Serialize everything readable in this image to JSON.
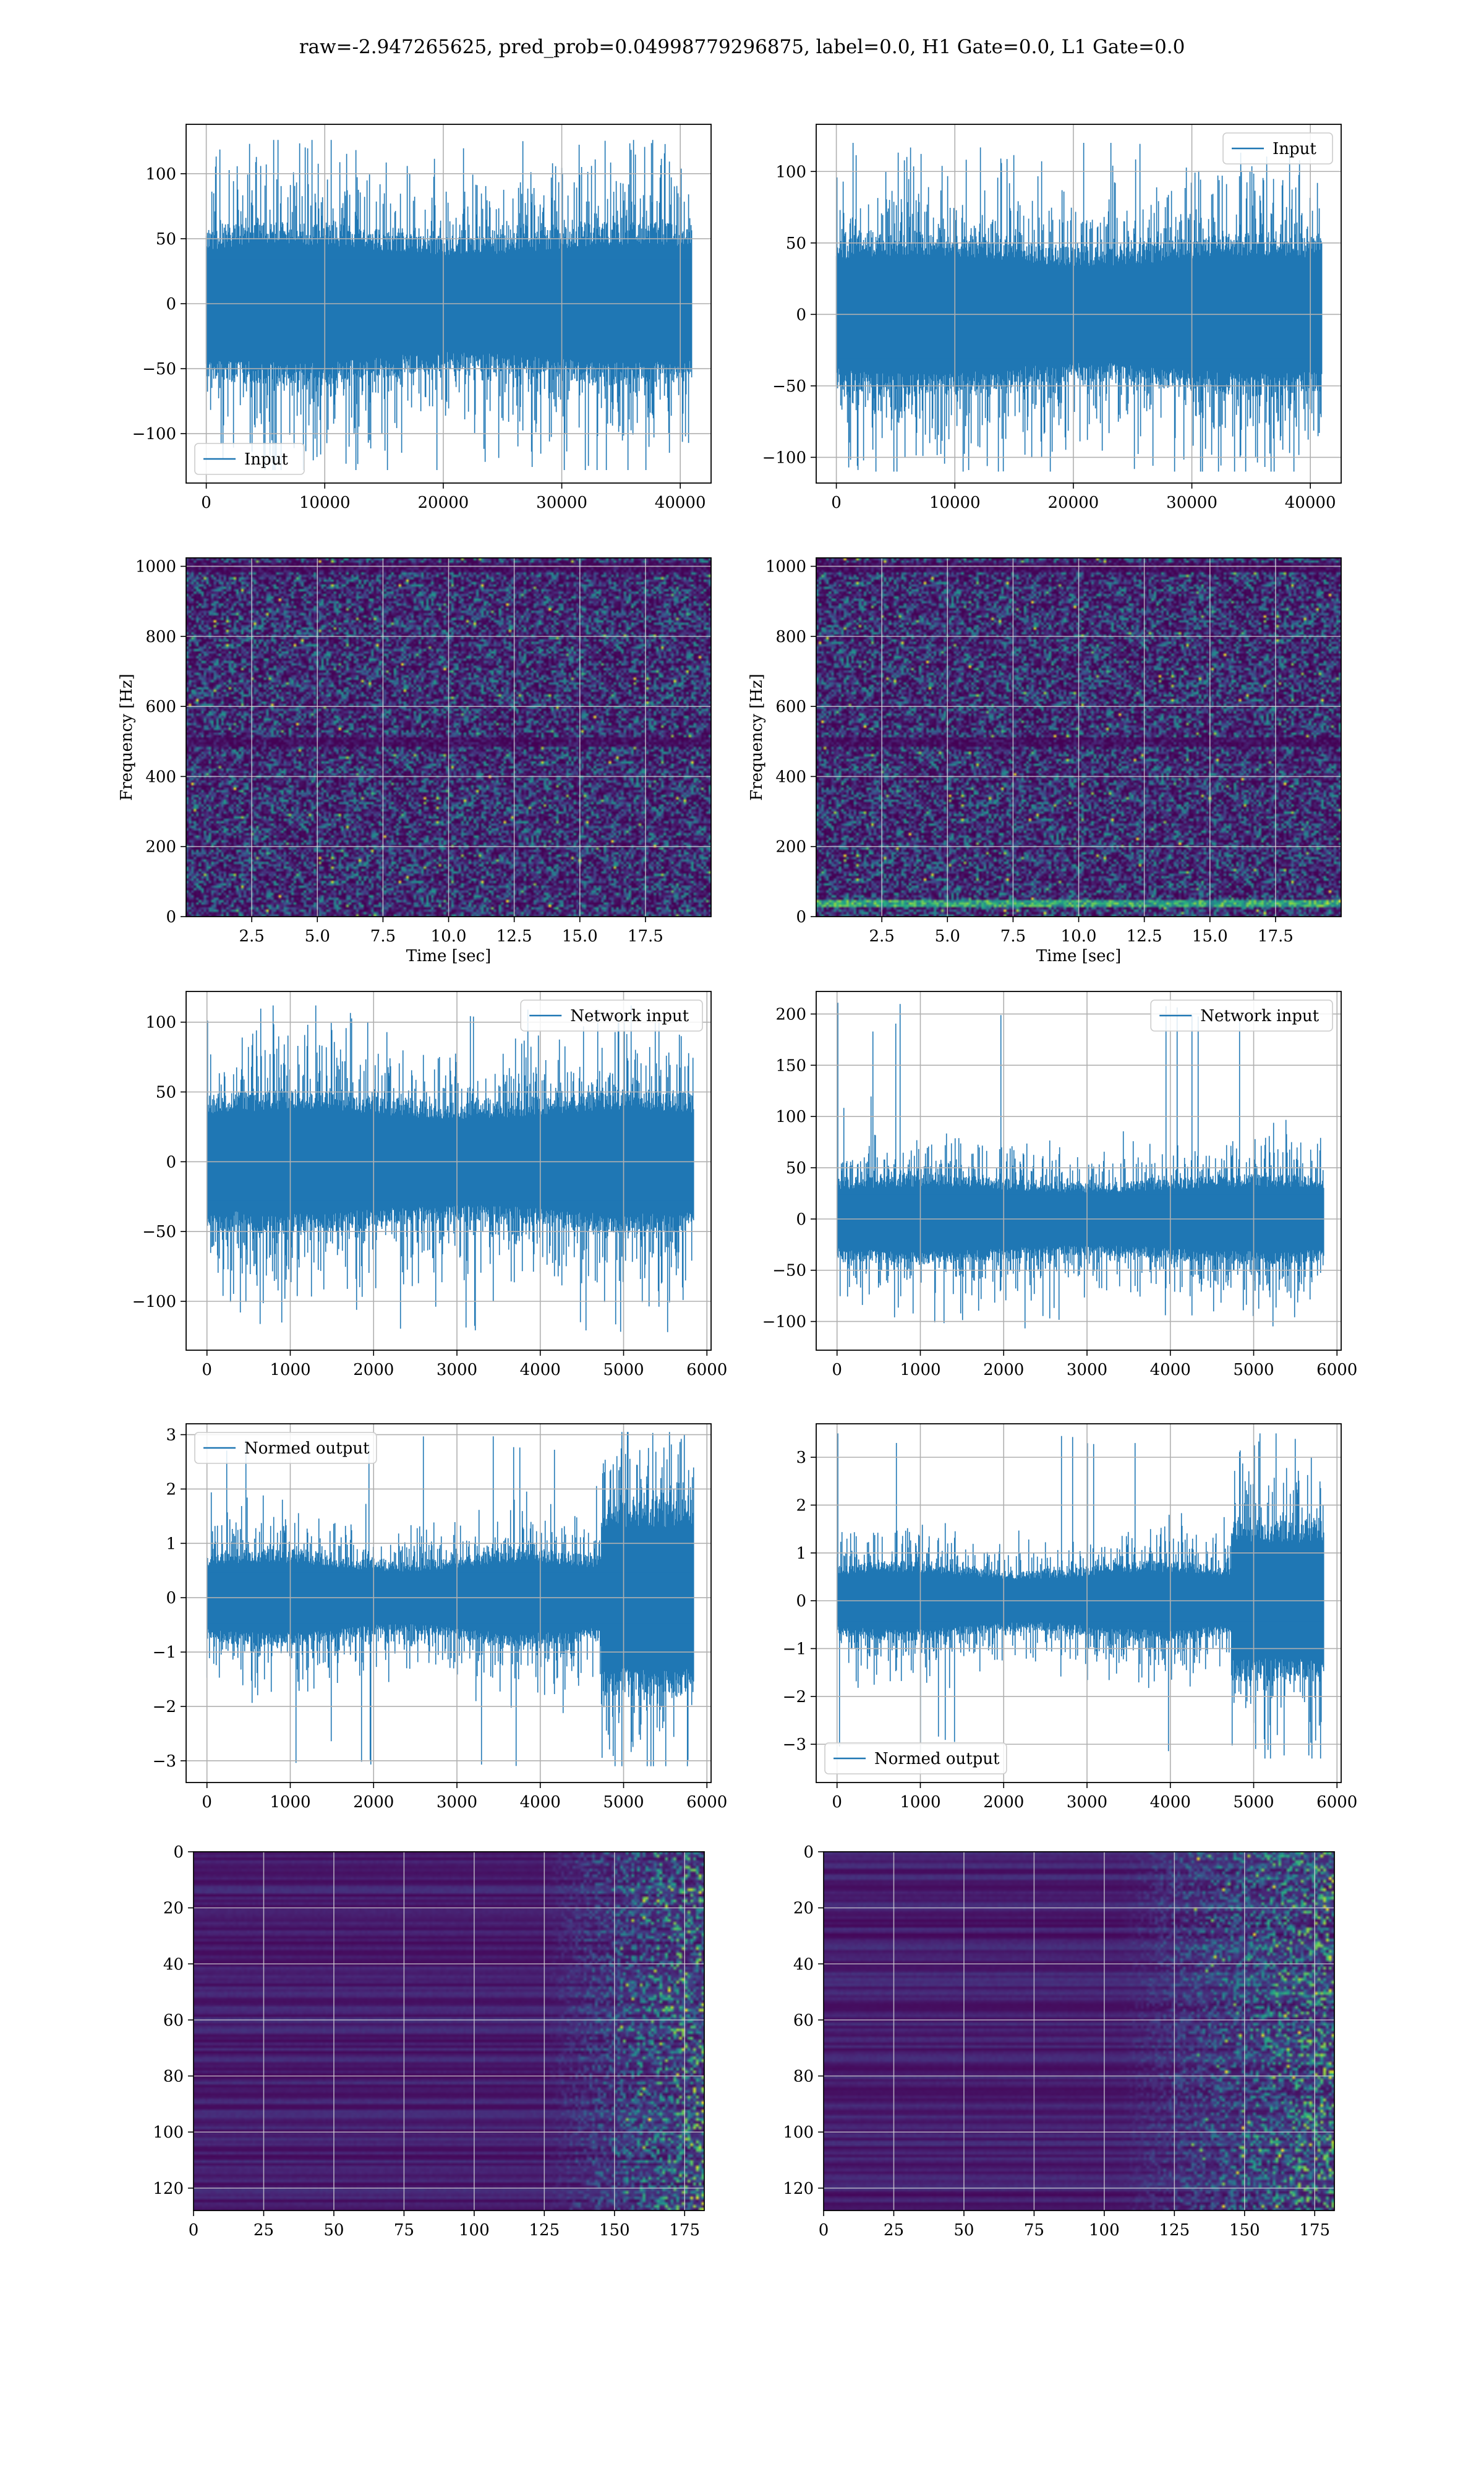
{
  "figure": {
    "title": "raw=-2.947265625, pred_prob=0.04998779296875, label=0.0, H1 Gate=0.0, L1 Gate=0.0"
  },
  "colors": {
    "series": "#1f77b4",
    "grid": "#b0b0b0",
    "viridis_low": "#440154",
    "viridis_high": "#fde725"
  },
  "chart_data": [
    {
      "id": "input-h1",
      "type": "line",
      "title": "",
      "xlabel": "",
      "ylabel": "",
      "xlim": [
        -1700,
        42600
      ],
      "ylim": [
        -138,
        138
      ],
      "xticks": [
        0,
        10000,
        20000,
        30000,
        40000
      ],
      "yticks": [
        -100,
        -50,
        0,
        50,
        100
      ],
      "grid": true,
      "legend_placement": "lower-left",
      "series": [
        {
          "name": "Input",
          "n": 40960,
          "x_range": [
            0,
            40960
          ],
          "band": [
            -55,
            55
          ],
          "peak_min": -128,
          "peak_max": 126,
          "profile": "flat"
        }
      ]
    },
    {
      "id": "input-l1",
      "type": "line",
      "title": "",
      "xlabel": "",
      "ylabel": "",
      "xlim": [
        -1700,
        42600
      ],
      "ylim": [
        -118,
        133
      ],
      "xticks": [
        0,
        10000,
        20000,
        30000,
        40000
      ],
      "yticks": [
        -100,
        -50,
        0,
        50,
        100
      ],
      "grid": true,
      "legend_placement": "upper-right",
      "series": [
        {
          "name": "Input",
          "n": 40960,
          "x_range": [
            0,
            40960
          ],
          "band": [
            -50,
            50
          ],
          "peak_min": -110,
          "peak_max": 120,
          "profile": "flat"
        }
      ]
    },
    {
      "id": "spectrogram-h1",
      "type": "heatmap",
      "title": "",
      "xlabel": "Time [sec]",
      "ylabel": "Frequency [Hz]",
      "xlim": [
        0,
        20
      ],
      "ylim": [
        0,
        1024
      ],
      "xticks": [
        2.5,
        5.0,
        7.5,
        10.0,
        12.5,
        15.0,
        17.5
      ],
      "xtick_labels": [
        "2.5",
        "5.0",
        "7.5",
        "10.0",
        "12.5",
        "15.0",
        "17.5"
      ],
      "yticks": [
        0,
        200,
        400,
        600,
        800,
        1000
      ],
      "grid": true,
      "colormap": "viridis",
      "dark_bands_hz": [
        500,
        1000
      ],
      "bright_rows_hz": []
    },
    {
      "id": "spectrogram-l1",
      "type": "heatmap",
      "title": "",
      "xlabel": "Time [sec]",
      "ylabel": "Frequency [Hz]",
      "xlim": [
        0,
        20
      ],
      "ylim": [
        0,
        1024
      ],
      "xticks": [
        2.5,
        5.0,
        7.5,
        10.0,
        12.5,
        15.0,
        17.5
      ],
      "xtick_labels": [
        "2.5",
        "5.0",
        "7.5",
        "10.0",
        "12.5",
        "15.0",
        "17.5"
      ],
      "yticks": [
        0,
        200,
        400,
        600,
        800,
        1000
      ],
      "grid": true,
      "colormap": "viridis",
      "dark_bands_hz": [
        500,
        1000
      ],
      "bright_rows_hz": [
        40
      ]
    },
    {
      "id": "network-input-h1",
      "type": "line",
      "title": "",
      "xlabel": "",
      "ylabel": "",
      "xlim": [
        -250,
        6050
      ],
      "ylim": [
        -135,
        122
      ],
      "xticks": [
        0,
        1000,
        2000,
        3000,
        4000,
        5000,
        6000
      ],
      "yticks": [
        -100,
        -50,
        0,
        50,
        100
      ],
      "grid": true,
      "legend_placement": "upper-right",
      "series": [
        {
          "name": "Network input",
          "n": 5840,
          "x_range": [
            0,
            5840
          ],
          "band": [
            -45,
            45
          ],
          "peak_min": -122,
          "peak_max": 112,
          "profile": "flat"
        }
      ]
    },
    {
      "id": "network-input-l1",
      "type": "line",
      "title": "",
      "xlabel": "",
      "ylabel": "",
      "xlim": [
        -250,
        6050
      ],
      "ylim": [
        -128,
        222
      ],
      "xticks": [
        0,
        1000,
        2000,
        3000,
        4000,
        5000,
        6000
      ],
      "yticks": [
        -100,
        -50,
        0,
        50,
        100,
        150,
        200
      ],
      "grid": true,
      "legend_placement": "upper-right",
      "series": [
        {
          "name": "Network input",
          "n": 5840,
          "x_range": [
            0,
            5840
          ],
          "band": [
            -38,
            38
          ],
          "peak_min": -110,
          "peak_max": 211,
          "profile": "spike-start"
        }
      ]
    },
    {
      "id": "normed-output-h1",
      "type": "line",
      "title": "",
      "xlabel": "",
      "ylabel": "",
      "xlim": [
        -250,
        6050
      ],
      "ylim": [
        -3.4,
        3.2
      ],
      "xticks": [
        0,
        1000,
        2000,
        3000,
        4000,
        5000,
        6000
      ],
      "yticks": [
        -3,
        -2,
        -1,
        0,
        1,
        2,
        3
      ],
      "grid": true,
      "legend_placement": "upper-left",
      "series": [
        {
          "name": "Normed output",
          "n": 5840,
          "x_range": [
            0,
            5840
          ],
          "band": [
            -0.75,
            0.75
          ],
          "peak_min": -3.1,
          "peak_max": 3.05,
          "profile": "tail-burst"
        }
      ]
    },
    {
      "id": "normed-output-l1",
      "type": "line",
      "title": "",
      "xlabel": "",
      "ylabel": "",
      "xlim": [
        -250,
        6050
      ],
      "ylim": [
        -3.8,
        3.7
      ],
      "xticks": [
        0,
        1000,
        2000,
        3000,
        4000,
        5000,
        6000
      ],
      "yticks": [
        -3,
        -2,
        -1,
        0,
        1,
        2,
        3
      ],
      "grid": true,
      "legend_placement": "lower-left",
      "series": [
        {
          "name": "Normed output",
          "n": 5840,
          "x_range": [
            0,
            5840
          ],
          "band": [
            -0.7,
            0.7
          ],
          "peak_min": -3.3,
          "peak_max": 3.5,
          "profile": "tail-burst-spike"
        }
      ]
    },
    {
      "id": "feature-map-h1",
      "type": "heatmap",
      "title": "",
      "xlabel": "",
      "ylabel": "",
      "xlim": [
        0,
        182
      ],
      "ylim": [
        128,
        0
      ],
      "y_inverted": true,
      "xticks": [
        0,
        25,
        50,
        75,
        100,
        125,
        150,
        175
      ],
      "yticks": [
        0,
        20,
        40,
        60,
        80,
        100,
        120
      ],
      "grid": true,
      "colormap": "viridis",
      "activity_onset_x": 150
    },
    {
      "id": "feature-map-l1",
      "type": "heatmap",
      "title": "",
      "xlabel": "",
      "ylabel": "",
      "xlim": [
        0,
        182
      ],
      "ylim": [
        128,
        0
      ],
      "y_inverted": true,
      "xticks": [
        0,
        25,
        50,
        75,
        100,
        125,
        150,
        175
      ],
      "yticks": [
        0,
        20,
        40,
        60,
        80,
        100,
        120
      ],
      "grid": true,
      "colormap": "viridis",
      "activity_onset_x": 130
    }
  ]
}
